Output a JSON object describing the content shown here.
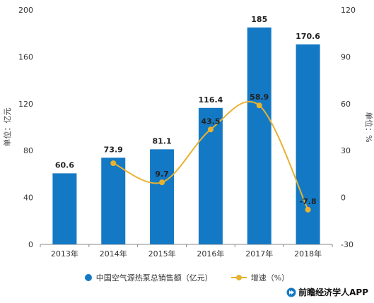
{
  "colors": {
    "bar": "#1479c5",
    "line": "#e8b231",
    "axis": "#888888",
    "grid": "#dddddd"
  },
  "chart_data": {
    "type": "bar",
    "categories": [
      "2013年",
      "2014年",
      "2015年",
      "2016年",
      "2017年",
      "2018年"
    ],
    "series": [
      {
        "name": "中国空气源热泵总销售额（亿元）",
        "type": "bar",
        "axis": "left",
        "values": [
          60.6,
          73.9,
          81.1,
          116.4,
          185,
          170.6
        ]
      },
      {
        "name": "增速（%）",
        "type": "line",
        "axis": "right",
        "values": [
          null,
          21.9,
          9.7,
          43.5,
          58.9,
          -7.8
        ],
        "labels": [
          "",
          "",
          "9.7",
          "43.5",
          "58.9",
          "-7.8"
        ]
      }
    ],
    "bar_labels": [
      "60.6",
      "73.9",
      "81.1",
      "116.4",
      "185",
      "170.6"
    ],
    "ylabel": "单位：亿元",
    "ylabel_right": "单位：%",
    "ylim": [
      0,
      200
    ],
    "yticks": [
      "0",
      "40",
      "80",
      "120",
      "160",
      "200"
    ],
    "ylim_right": [
      -30,
      120
    ],
    "yticks_right": [
      "-30",
      "0",
      "30",
      "60",
      "90",
      "120"
    ],
    "grid": false,
    "legend": "bottom"
  },
  "legend": {
    "bar_label": "中国空气源热泵总销售额（亿元）",
    "line_label": "增速（%）"
  },
  "brand": {
    "text": "前瞻经济学人APP",
    "icon": "forward-arrow-icon"
  }
}
